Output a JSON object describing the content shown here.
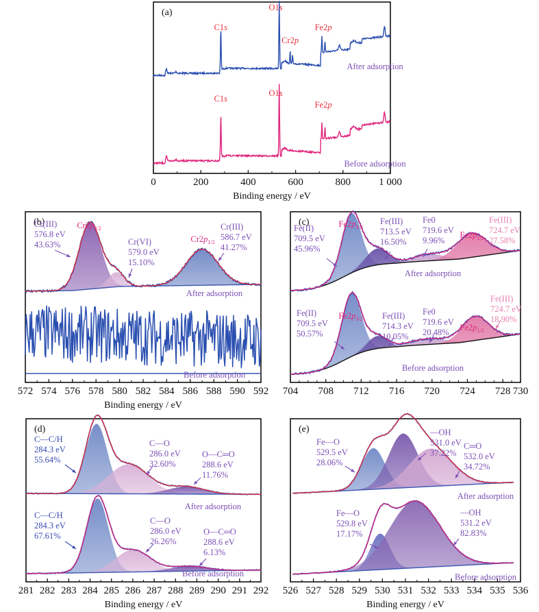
{
  "chart_data": [
    {
      "id": "a",
      "panel_label": "(a)",
      "type": "line",
      "title": "",
      "xlabel": "Binding energy / eV",
      "ylabel": "",
      "xlim": [
        0,
        1000
      ],
      "xticks": [
        "0",
        "200",
        "400",
        "600",
        "800",
        "1 000"
      ],
      "xtick_values": [
        0,
        200,
        400,
        600,
        800,
        1000
      ],
      "series": [
        {
          "name": "After adsorption",
          "color": "#2a4fb0",
          "label_color": "#7b4fb5",
          "peaks": [
            {
              "label": "C1s",
              "x": 284
            },
            {
              "label": "O1s",
              "x": 531
            },
            {
              "label": "Cr2p",
              "x": 577
            },
            {
              "label": "Fe2p",
              "x": 711
            }
          ]
        },
        {
          "name": "Before adsorption",
          "color": "#e0267d",
          "label_color": "#7b4fb5",
          "peaks": [
            {
              "label": "C1s",
              "x": 284
            },
            {
              "label": "O1s",
              "x": 531
            },
            {
              "label": "Fe2p",
              "x": 711
            }
          ]
        }
      ],
      "peak_label_color": "#e8303a"
    },
    {
      "id": "b",
      "panel_label": "(b)",
      "type": "area",
      "xlabel": "Binding energy / eV",
      "xlim": [
        572,
        592
      ],
      "xticks": [
        "572",
        "574",
        "576",
        "578",
        "580",
        "582",
        "584",
        "586",
        "588",
        "590",
        "592"
      ],
      "xtick_values": [
        572,
        574,
        576,
        578,
        580,
        582,
        584,
        586,
        588,
        590,
        592
      ],
      "series": [
        {
          "name": "After adsorption",
          "components": [
            {
              "label": "Cr(III)",
              "energy": "576.8 eV",
              "percent": "43.63%",
              "center": 577.5,
              "fwhm": 2.2,
              "height": 0.78,
              "color": "#8a5fb0"
            },
            {
              "label": "Cr(VI)",
              "energy": "579.0 eV",
              "percent": "15.10%",
              "center": 579.7,
              "fwhm": 1.6,
              "height": 0.17,
              "color": "#d9b3d8"
            },
            {
              "label": "Cr(III)",
              "energy": "586.7 eV",
              "percent": "41.27%",
              "center": 587.0,
              "fwhm": 3.2,
              "height": 0.42,
              "color": "#6f86c4"
            }
          ],
          "peak_labels": [
            "Cr2p3/2",
            "Cr2p1/2"
          ]
        },
        {
          "name": "Before adsorption",
          "components": []
        }
      ]
    },
    {
      "id": "c",
      "panel_label": "(c)",
      "type": "area",
      "xlabel": "",
      "xlim": [
        704,
        730
      ],
      "xticks": [
        "704",
        "708",
        "712",
        "716",
        "720",
        "724",
        "728",
        "730"
      ],
      "xtick_values": [
        704,
        708,
        712,
        716,
        720,
        724,
        728,
        730
      ],
      "series": [
        {
          "name": "After adsorption",
          "components": [
            {
              "label": "Fe(II)",
              "energy": "709.5 eV",
              "percent": "45.96%",
              "center": 710.9,
              "fwhm": 2.6,
              "height": 0.62,
              "color": "#7088c6"
            },
            {
              "label": "Fe(III)",
              "energy": "713.5 eV",
              "percent": "16.50%",
              "center": 713.8,
              "fwhm": 3.0,
              "height": 0.17,
              "color": "#6a52a8"
            },
            {
              "label": "Fe0",
              "energy": "719.6 eV",
              "percent": "9.96%",
              "center": 719.6,
              "fwhm": 4.0,
              "height": 0.07,
              "color": "#c9a3cf"
            },
            {
              "label": "Fe(III)",
              "energy": "724.7 eV",
              "percent": "27.58%",
              "center": 724.5,
              "fwhm": 4.0,
              "height": 0.25,
              "color": "#e27aa8"
            }
          ],
          "peak_labels": [
            "Fe2p3/2",
            "Fe2p1/2"
          ]
        },
        {
          "name": "Before adsorption",
          "components": [
            {
              "label": "Fe(II)",
              "energy": "709.5 eV",
              "percent": "50.57%",
              "center": 710.9,
              "fwhm": 2.6,
              "height": 0.66,
              "color": "#7088c6"
            },
            {
              "label": "Fe(III)",
              "energy": "714.3 eV",
              "percent": "10.05%",
              "center": 713.8,
              "fwhm": 2.6,
              "height": 0.13,
              "color": "#6a52a8"
            },
            {
              "label": "Fe0",
              "energy": "719.6 eV",
              "percent": "20.48%",
              "center": 719.5,
              "fwhm": 5.0,
              "height": 0.06,
              "color": "#c9a3cf"
            },
            {
              "label": "Fe(III)",
              "energy": "724.7 eV",
              "percent": "18.90%",
              "center": 724.9,
              "fwhm": 3.6,
              "height": 0.25,
              "color": "#e27aa8"
            }
          ],
          "peak_labels": [
            "Fe2p3/2",
            "Fe2p1/2"
          ]
        }
      ]
    },
    {
      "id": "d",
      "panel_label": "(d)",
      "type": "area",
      "xlabel": "Binding energy / eV",
      "xlim": [
        281,
        292
      ],
      "xticks": [
        "281",
        "282",
        "283",
        "284",
        "285",
        "286",
        "287",
        "288",
        "289",
        "290",
        "291",
        "292"
      ],
      "xtick_values": [
        281,
        282,
        283,
        284,
        285,
        286,
        287,
        288,
        289,
        290,
        291,
        292
      ],
      "series": [
        {
          "name": "After adsorption",
          "components": [
            {
              "label": "C—C/H",
              "energy": "284.3 eV",
              "percent": "55.64%",
              "center": 284.3,
              "fwhm": 1.2,
              "height": 0.85,
              "color": "#7088c6"
            },
            {
              "label": "C—O",
              "energy": "286.0 eV",
              "percent": "32.60%",
              "center": 285.8,
              "fwhm": 2.2,
              "height": 0.36,
              "color": "#d9b0d6"
            },
            {
              "label": "O—C═O",
              "energy": "288.6 eV",
              "percent": "11.76%",
              "center": 288.5,
              "fwhm": 2.0,
              "height": 0.09,
              "color": "#7a55ad"
            }
          ]
        },
        {
          "name": "Before adsorption",
          "components": [
            {
              "label": "C—C/H",
              "energy": "284.3 eV",
              "percent": "67.61%",
              "center": 284.35,
              "fwhm": 1.2,
              "height": 0.9,
              "color": "#7088c6"
            },
            {
              "label": "C—O",
              "energy": "286.0 eV",
              "percent": "26.26%",
              "center": 286.0,
              "fwhm": 1.9,
              "height": 0.27,
              "color": "#d9b0d6"
            },
            {
              "label": "O—C═O",
              "energy": "288.6 eV",
              "percent": "6.13%",
              "center": 288.6,
              "fwhm": 2.0,
              "height": 0.06,
              "color": "#7a55ad"
            }
          ]
        }
      ]
    },
    {
      "id": "e",
      "panel_label": "(e)",
      "type": "area",
      "xlabel": "Binding energy / eV",
      "xlim": [
        526,
        536
      ],
      "xticks": [
        "526",
        "527",
        "528",
        "529",
        "530",
        "531",
        "532",
        "533",
        "534",
        "535",
        "536"
      ],
      "xtick_values": [
        526,
        527,
        528,
        529,
        530,
        531,
        532,
        533,
        534,
        535,
        536
      ],
      "series": [
        {
          "name": "After adsorption",
          "components": [
            {
              "label": "Fe—O",
              "energy": "529.5 eV",
              "percent": "28.06%",
              "center": 529.6,
              "fwhm": 1.2,
              "height": 0.5,
              "color": "#7088c6"
            },
            {
              "label": "—OH",
              "energy": "531.0 eV",
              "percent": "37.22%",
              "center": 530.9,
              "fwhm": 1.5,
              "height": 0.66,
              "color": "#7a5aad"
            },
            {
              "label": "C═O",
              "energy": "532.0 eV",
              "percent": "34.72%",
              "center": 532.1,
              "fwhm": 2.2,
              "height": 0.46,
              "color": "#d4a8d2"
            }
          ]
        },
        {
          "name": "Before adsorption",
          "components": [
            {
              "label": "Fe—O",
              "energy": "529.8 eV",
              "percent": "17.17%",
              "center": 529.9,
              "fwhm": 1.0,
              "height": 0.42,
              "color": "#6a6ec0"
            },
            {
              "label": "—OH",
              "energy": "531.2 eV",
              "percent": "82.83%",
              "center": 531.4,
              "fwhm": 2.6,
              "height": 0.78,
              "color": "#8a68b3"
            }
          ]
        }
      ]
    }
  ]
}
